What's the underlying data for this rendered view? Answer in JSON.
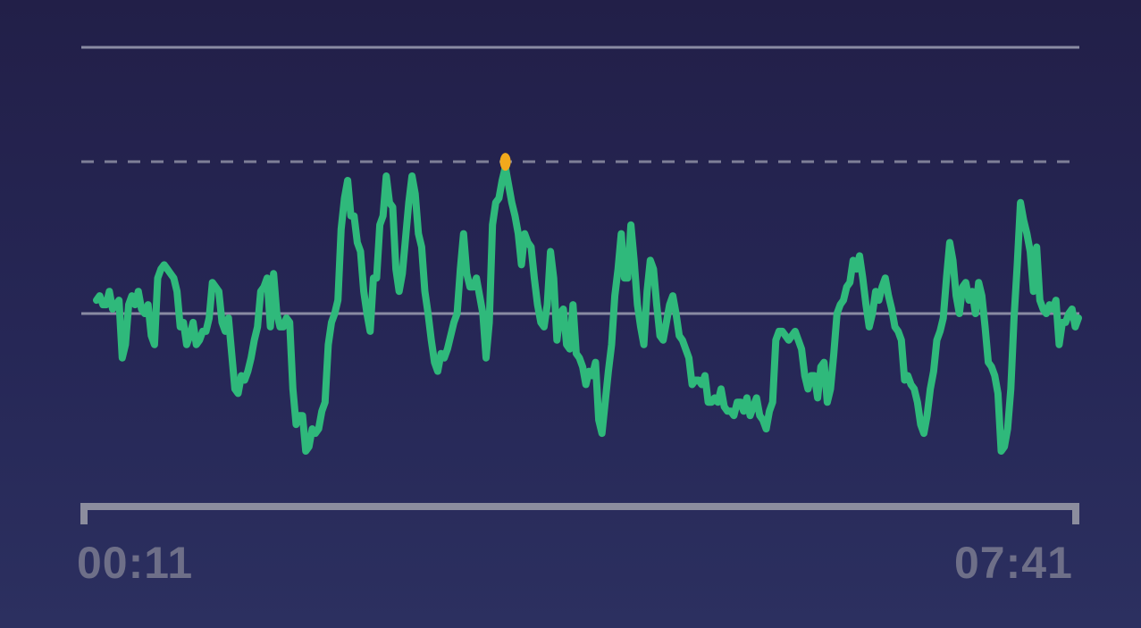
{
  "chart_data": {
    "type": "line",
    "title": "",
    "xlabel": "",
    "ylabel": "",
    "x_start_label": "00:11",
    "x_end_label": "07:41",
    "ylim": [
      0,
      100
    ],
    "reference_lines": {
      "top": 100,
      "threshold": 70,
      "baseline": 40
    },
    "colors": {
      "line": "#2fb97b",
      "above_threshold": "#f2a91c",
      "gridline": "#8a8ba3",
      "axis": "#8c8d9e",
      "background_top": "#221f48",
      "background_bottom": "#2c3060"
    },
    "series": [
      {
        "values": [
          43,
          44,
          42,
          42,
          45,
          41,
          42,
          43,
          30,
          33,
          42,
          44,
          42,
          45,
          41,
          40,
          42,
          35,
          33,
          48,
          50,
          51,
          50,
          49,
          48,
          45,
          37,
          38,
          33,
          35,
          38,
          33,
          34,
          36,
          36,
          39,
          47,
          46,
          45,
          38,
          36,
          39,
          31,
          23,
          22,
          26,
          25,
          27,
          30,
          34,
          37,
          45,
          46,
          48,
          37,
          49,
          40,
          37,
          37,
          39,
          38,
          23,
          15,
          17,
          17,
          9,
          10,
          14,
          13,
          14,
          18,
          20,
          33,
          38,
          40,
          43,
          59,
          66,
          70,
          62,
          62,
          56,
          54,
          45,
          40,
          36,
          48,
          48,
          60,
          62,
          71,
          65,
          64,
          50,
          45,
          49,
          57,
          65,
          71,
          67,
          58,
          55,
          45,
          40,
          34,
          29,
          27,
          31,
          30,
          32,
          35,
          38,
          40,
          50,
          58,
          49,
          46,
          46,
          48,
          44,
          40,
          30,
          38,
          60,
          65,
          66,
          70,
          73,
          69,
          65,
          62,
          58,
          51,
          58,
          56,
          55,
          48,
          42,
          38,
          37,
          42,
          54,
          48,
          34,
          40,
          41,
          33,
          32,
          42,
          31,
          30,
          28,
          24,
          27,
          26,
          29,
          16,
          13,
          20,
          27,
          33,
          44,
          50,
          58,
          48,
          48,
          60,
          52,
          42,
          37,
          33,
          45,
          52,
          50,
          42,
          35,
          34,
          38,
          42,
          44,
          40,
          35,
          34,
          32,
          30,
          24,
          25,
          25,
          24,
          26,
          20,
          20,
          21,
          20,
          23,
          19,
          18,
          18,
          17,
          20,
          20,
          18,
          21,
          17,
          19,
          21,
          17,
          16,
          14,
          18,
          20,
          34,
          36,
          36,
          35,
          34,
          35,
          36,
          34,
          32,
          26,
          23,
          26,
          26,
          21,
          28,
          29,
          20,
          23,
          31,
          40,
          42,
          43,
          46,
          47,
          52,
          50,
          53,
          48,
          42,
          37,
          40,
          45,
          43,
          46,
          48,
          44,
          41,
          37,
          36,
          34,
          25,
          26,
          24,
          23,
          20,
          15,
          13,
          17,
          23,
          27,
          34,
          36,
          39,
          48,
          56,
          52,
          44,
          40,
          46,
          47,
          43,
          45,
          40,
          47,
          44,
          37,
          29,
          28,
          26,
          22,
          9,
          10,
          14,
          23,
          39,
          51,
          65,
          61,
          58,
          54,
          45,
          55,
          43,
          41,
          40,
          42,
          41,
          43,
          33,
          38,
          38,
          40,
          41,
          37,
          39
        ]
      }
    ]
  }
}
